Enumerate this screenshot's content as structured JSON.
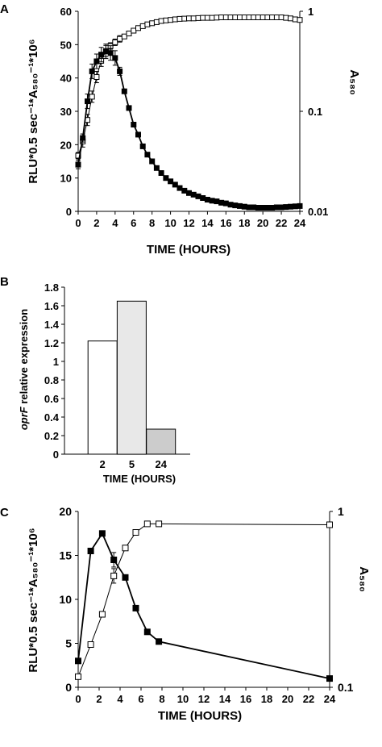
{
  "panels": [
    {
      "letter": "A",
      "xlabel": "TIME (HOURS)",
      "ylabel_left": "RLU*0.5 sec⁻¹*A₅₈₀⁻¹*10⁶",
      "ylabel_right": "A₅₈₀",
      "xticks": [
        "0",
        "2",
        "4",
        "6",
        "8",
        "10",
        "12",
        "14",
        "16",
        "18",
        "20",
        "22",
        "24"
      ],
      "yticks_left": [
        "0",
        "10",
        "20",
        "30",
        "40",
        "50",
        "60"
      ],
      "yticks_right": [
        "0.01",
        "0.1",
        "1"
      ]
    },
    {
      "letter": "B",
      "xlabel": "TIME (HOURS)",
      "ylabel_italic": "oprF",
      "ylabel_rest": " relative expression",
      "categories": [
        "2",
        "5",
        "24"
      ],
      "yticks": [
        "0",
        "0.2",
        "0.4",
        "0.6",
        "0.8",
        "1",
        "1.2",
        "1.4",
        "1.6",
        "1.8"
      ]
    },
    {
      "letter": "C",
      "xlabel": "TIME (HOURS)",
      "ylabel_left": "RLU*0.5 sec⁻¹*A₅₈₀⁻¹*10⁶",
      "ylabel_right": "A₅₈₀",
      "xticks": [
        "0",
        "2",
        "4",
        "6",
        "8",
        "10",
        "12",
        "14",
        "16",
        "18",
        "20",
        "22",
        "24"
      ],
      "yticks_left": [
        "0",
        "5",
        "10",
        "15",
        "20"
      ],
      "yticks_right": [
        "0.1",
        "1"
      ]
    }
  ],
  "chart_data": [
    {
      "type": "line",
      "panel": "A",
      "xlabel": "TIME (HOURS)",
      "ylabel": "RLU*0.5 sec-1*A580-1*10^6",
      "y2label": "A580",
      "xlim": [
        0,
        24
      ],
      "ylim": [
        0,
        60
      ],
      "y2lim": [
        0.01,
        1
      ],
      "y2scale": "log",
      "series": [
        {
          "axis": "left",
          "marker": "filled-square",
          "x": [
            0,
            0.5,
            1,
            1.5,
            2,
            2.5,
            3,
            3.5,
            4,
            4.5,
            5,
            5.5,
            6,
            6.5,
            7,
            7.5,
            8,
            8.5,
            9,
            9.5,
            10,
            10.5,
            11,
            11.5,
            12,
            12.5,
            13,
            13.5,
            14,
            14.5,
            15,
            15.5,
            16,
            16.5,
            17,
            17.5,
            18,
            18.5,
            19,
            19.5,
            20,
            20.5,
            21,
            21.5,
            22,
            22.5,
            23,
            23.5,
            24
          ],
          "y": [
            14,
            22,
            33,
            42,
            45,
            47,
            48,
            47.5,
            46,
            42,
            36,
            31,
            26,
            23,
            19.5,
            17,
            15,
            13,
            11.5,
            10,
            9,
            8,
            7,
            6.2,
            5.5,
            5,
            4.5,
            4,
            3.5,
            3.2,
            3,
            2.6,
            2.4,
            2,
            1.8,
            1.6,
            1.4,
            1.2,
            1.2,
            1.1,
            1.1,
            1.1,
            1.1,
            1.2,
            1.2,
            1.3,
            1.4,
            1.5,
            1.6
          ]
        },
        {
          "axis": "right",
          "marker": "open-square",
          "x": [
            0,
            0.5,
            1,
            1.5,
            2,
            2.5,
            3,
            3.5,
            4,
            4.5,
            5,
            5.5,
            6,
            6.5,
            7,
            7.5,
            8,
            8.5,
            9,
            9.5,
            10,
            10.5,
            11,
            11.5,
            12,
            12.5,
            13,
            13.5,
            14,
            14.5,
            15,
            15.5,
            16,
            16.5,
            17,
            17.5,
            18,
            18.5,
            19,
            19.5,
            20,
            20.5,
            21,
            21.5,
            22,
            22.5,
            23,
            23.5,
            24
          ],
          "y": [
            0.036,
            0.05,
            0.082,
            0.14,
            0.22,
            0.32,
            0.4,
            0.45,
            0.49,
            0.53,
            0.56,
            0.6,
            0.64,
            0.68,
            0.71,
            0.74,
            0.76,
            0.78,
            0.8,
            0.81,
            0.82,
            0.83,
            0.84,
            0.845,
            0.85,
            0.85,
            0.855,
            0.86,
            0.86,
            0.86,
            0.865,
            0.87,
            0.87,
            0.87,
            0.87,
            0.87,
            0.87,
            0.87,
            0.87,
            0.87,
            0.87,
            0.87,
            0.87,
            0.87,
            0.87,
            0.86,
            0.85,
            0.83,
            0.82
          ]
        }
      ]
    },
    {
      "type": "bar",
      "panel": "B",
      "categories": [
        "2",
        "5",
        "24"
      ],
      "values": [
        1.22,
        1.65,
        0.27
      ],
      "bar_colors": [
        "#ffffff",
        "#e8e8e8",
        "#cccccc"
      ],
      "xlabel": "TIME (HOURS)",
      "ylabel": "oprF relative expression",
      "ylim": [
        0,
        1.8
      ]
    },
    {
      "type": "line",
      "panel": "C",
      "xlabel": "TIME (HOURS)",
      "ylabel": "RLU*0.5 sec-1*A580-1*10^6",
      "y2label": "A580",
      "xlim": [
        0,
        24
      ],
      "ylim": [
        0,
        20
      ],
      "y2lim": [
        0.1,
        1
      ],
      "y2scale": "log",
      "series": [
        {
          "axis": "left",
          "marker": "filled-square",
          "x": [
            0,
            1.2,
            2.3,
            3.4,
            4.5,
            5.5,
            6.6,
            7.7,
            24
          ],
          "y": [
            3,
            15.5,
            17.5,
            14.5,
            12.5,
            9,
            6.3,
            5.2,
            1
          ]
        },
        {
          "axis": "right",
          "marker": "open-square",
          "x": [
            0,
            1.2,
            2.3,
            3.4,
            4.5,
            5.5,
            6.6,
            7.7,
            24
          ],
          "y": [
            0.115,
            0.175,
            0.26,
            0.43,
            0.62,
            0.76,
            0.85,
            0.85,
            0.84
          ]
        }
      ]
    }
  ]
}
